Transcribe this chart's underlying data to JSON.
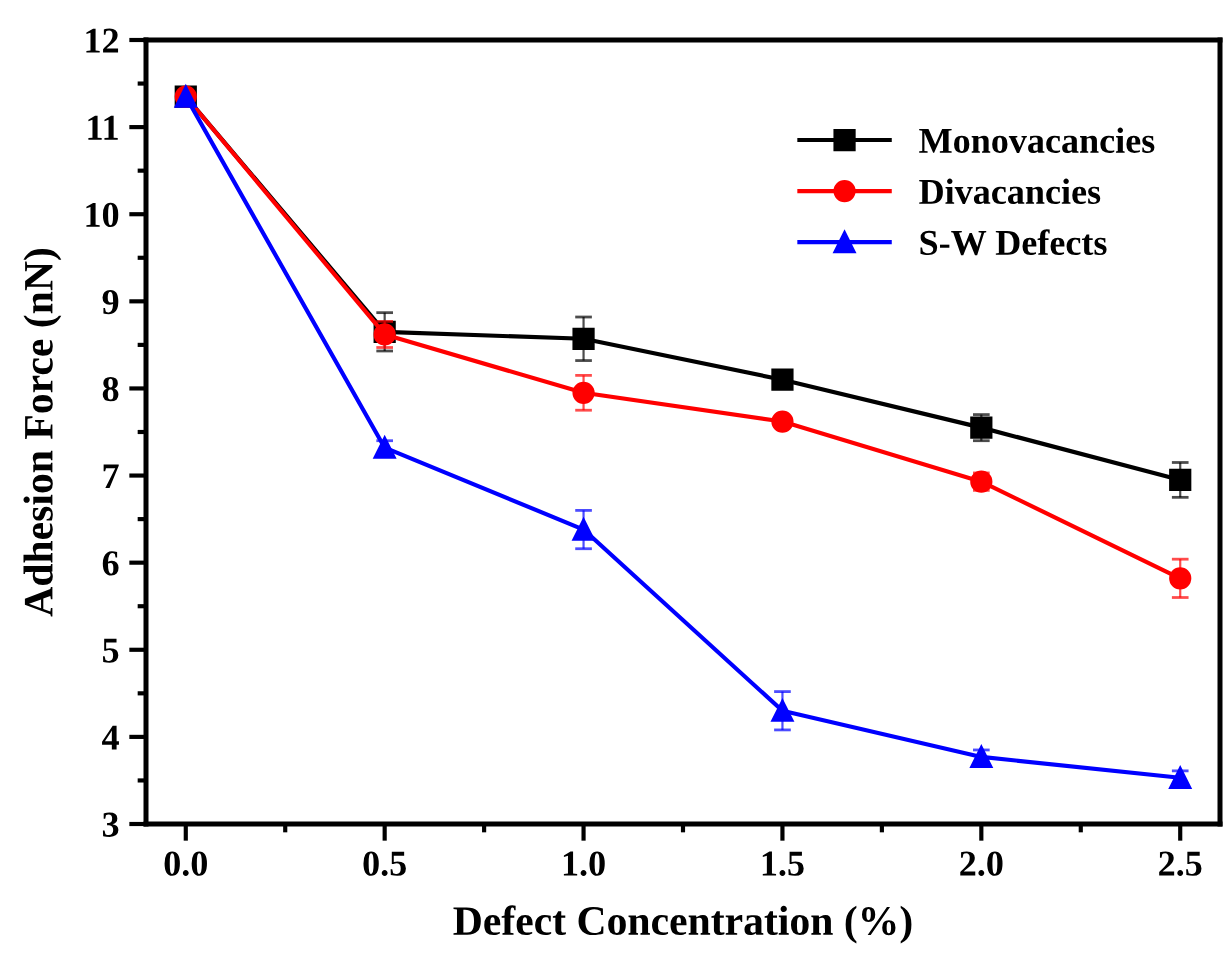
{
  "chart_data": {
    "type": "line",
    "xlabel": "Defect Concentration (%)",
    "ylabel": "Adhesion Force (nN)",
    "x": [
      0.0,
      0.5,
      1.0,
      1.5,
      2.0,
      2.5
    ],
    "series": [
      {
        "name": "Monovacancies",
        "color": "#000000",
        "marker": "square",
        "values": [
          11.35,
          8.65,
          8.57,
          8.1,
          7.55,
          6.95
        ],
        "errors": [
          null,
          0.22,
          0.25,
          0.1,
          0.15,
          0.2
        ]
      },
      {
        "name": "Divacancies",
        "color": "#ff0000",
        "marker": "circle",
        "values": [
          11.35,
          8.62,
          7.95,
          7.62,
          6.93,
          5.82
        ],
        "errors": [
          null,
          0.15,
          0.2,
          0.05,
          0.1,
          0.22
        ]
      },
      {
        "name": "S-W Defects",
        "color": "#0000ff",
        "marker": "triangle",
        "values": [
          11.35,
          7.32,
          6.38,
          4.3,
          3.77,
          3.53
        ],
        "errors": [
          null,
          0.08,
          0.22,
          0.22,
          0.08,
          0.08
        ]
      }
    ],
    "xlim": [
      -0.1,
      2.6
    ],
    "ylim": [
      3,
      12
    ],
    "xticks": [
      {
        "value": 0.0,
        "label": "0.0"
      },
      {
        "value": 0.5,
        "label": "0.5"
      },
      {
        "value": 1.0,
        "label": "1.0"
      },
      {
        "value": 1.5,
        "label": "1.5"
      },
      {
        "value": 2.0,
        "label": "2.0"
      },
      {
        "value": 2.5,
        "label": "2.5"
      }
    ],
    "yticks": [
      3,
      4,
      5,
      6,
      7,
      8,
      9,
      10,
      11,
      12
    ],
    "grid": false,
    "legend": "top right",
    "line_style": "solid"
  }
}
